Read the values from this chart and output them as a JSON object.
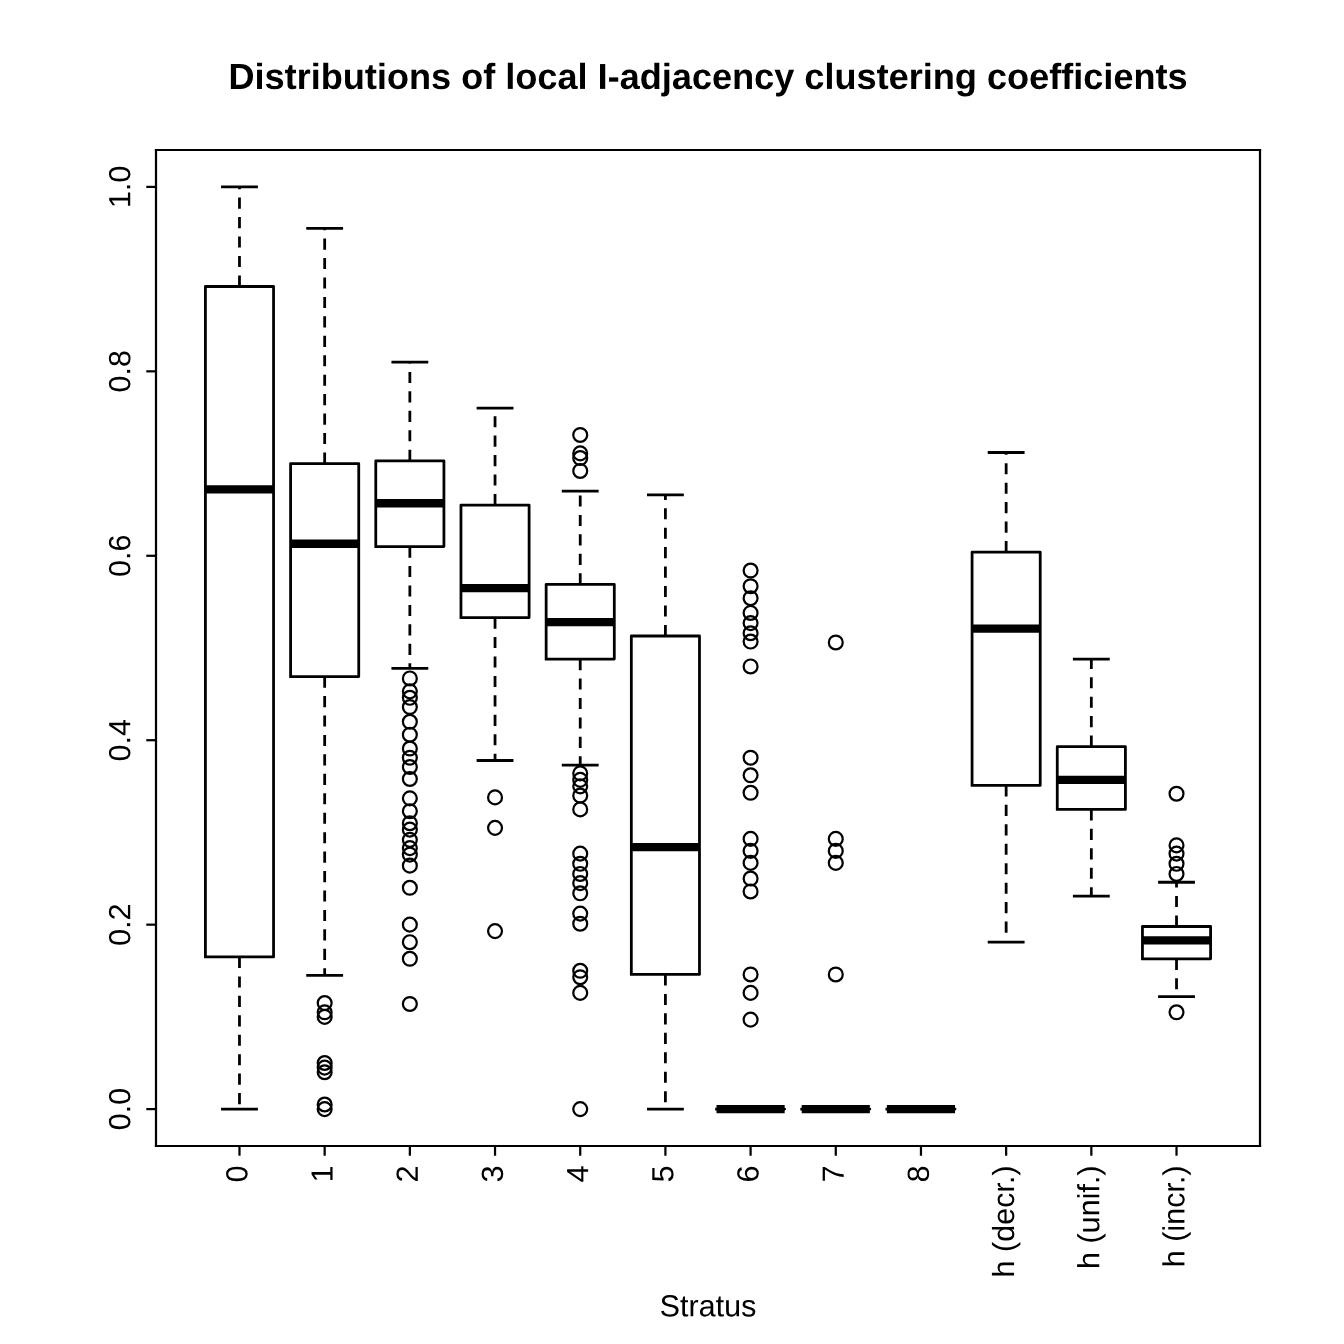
{
  "chart_data": {
    "type": "box",
    "title": "Distributions of local I-adjacency clustering coefficients",
    "xlabel": "Stratus",
    "categories": [
      "0",
      "1",
      "2",
      "3",
      "4",
      "5",
      "6",
      "7",
      "8",
      "h (decr.)",
      "h (unif.)",
      "h (incr.)"
    ],
    "boxes": [
      {
        "low": 0,
        "q1": 0.165,
        "median": 0.672,
        "q3": 0.892,
        "high": 1.0
      },
      {
        "low": 0.145,
        "q1": 0.469,
        "median": 0.613,
        "q3": 0.7,
        "high": 0.955,
        "outliers": [
          0.115,
          0.105,
          0.1,
          0.05,
          0.045,
          0.04,
          0.005,
          0.0
        ]
      },
      {
        "low": 0.478,
        "q1": 0.61,
        "median": 0.657,
        "q3": 0.703,
        "high": 0.81,
        "outliers": [
          0.467,
          0.453,
          0.446,
          0.436,
          0.42,
          0.406,
          0.391,
          0.381,
          0.371,
          0.358,
          0.337,
          0.323,
          0.31,
          0.303,
          0.292,
          0.283,
          0.276,
          0.264,
          0.24,
          0.2,
          0.181,
          0.163,
          0.114
        ]
      },
      {
        "low": 0.378,
        "q1": 0.533,
        "median": 0.565,
        "q3": 0.655,
        "high": 0.76,
        "outliers": [
          0.338,
          0.305,
          0.193
        ]
      },
      {
        "low": 0.373,
        "q1": 0.488,
        "median": 0.528,
        "q3": 0.569,
        "high": 0.67,
        "outliers": [
          0.731,
          0.711,
          0.706,
          0.692,
          0.364,
          0.357,
          0.35,
          0.34,
          0.325,
          0.277,
          0.266,
          0.255,
          0.245,
          0.234,
          0.212,
          0.201,
          0.15,
          0.143,
          0.126,
          0.0
        ]
      },
      {
        "low": 0,
        "q1": 0.146,
        "median": 0.284,
        "q3": 0.513,
        "high": 0.666
      },
      {
        "low": 0,
        "q1": 0,
        "median": 0,
        "q3": 0,
        "high": 0,
        "outliers": [
          0.584,
          0.567,
          0.554,
          0.538,
          0.527,
          0.516,
          0.507,
          0.48,
          0.381,
          0.362,
          0.343,
          0.293,
          0.28,
          0.267,
          0.25,
          0.236,
          0.146,
          0.126,
          0.097
        ]
      },
      {
        "low": 0,
        "q1": 0,
        "median": 0,
        "q3": 0,
        "high": 0,
        "outliers": [
          0.506,
          0.293,
          0.28,
          0.267,
          0.146
        ]
      },
      {
        "low": 0,
        "q1": 0,
        "median": 0,
        "q3": 0,
        "high": 0
      },
      {
        "low": 0.181,
        "q1": 0.351,
        "median": 0.521,
        "q3": 0.604,
        "high": 0.712
      },
      {
        "low": 0.231,
        "q1": 0.325,
        "median": 0.357,
        "q3": 0.393,
        "high": 0.488
      },
      {
        "low": 0.122,
        "q1": 0.163,
        "median": 0.183,
        "q3": 0.198,
        "high": 0.246,
        "outliers": [
          0.342,
          0.286,
          0.277,
          0.266,
          0.255,
          0.105
        ]
      }
    ],
    "ylim": [
      -0.04,
      1.04
    ],
    "yticks": [
      {
        "value": 0,
        "label": "0.0"
      },
      0.2,
      0.4,
      0.6,
      0.8,
      {
        "value": 1,
        "label": "1.0"
      }
    ],
    "grid": false,
    "legend": false
  }
}
